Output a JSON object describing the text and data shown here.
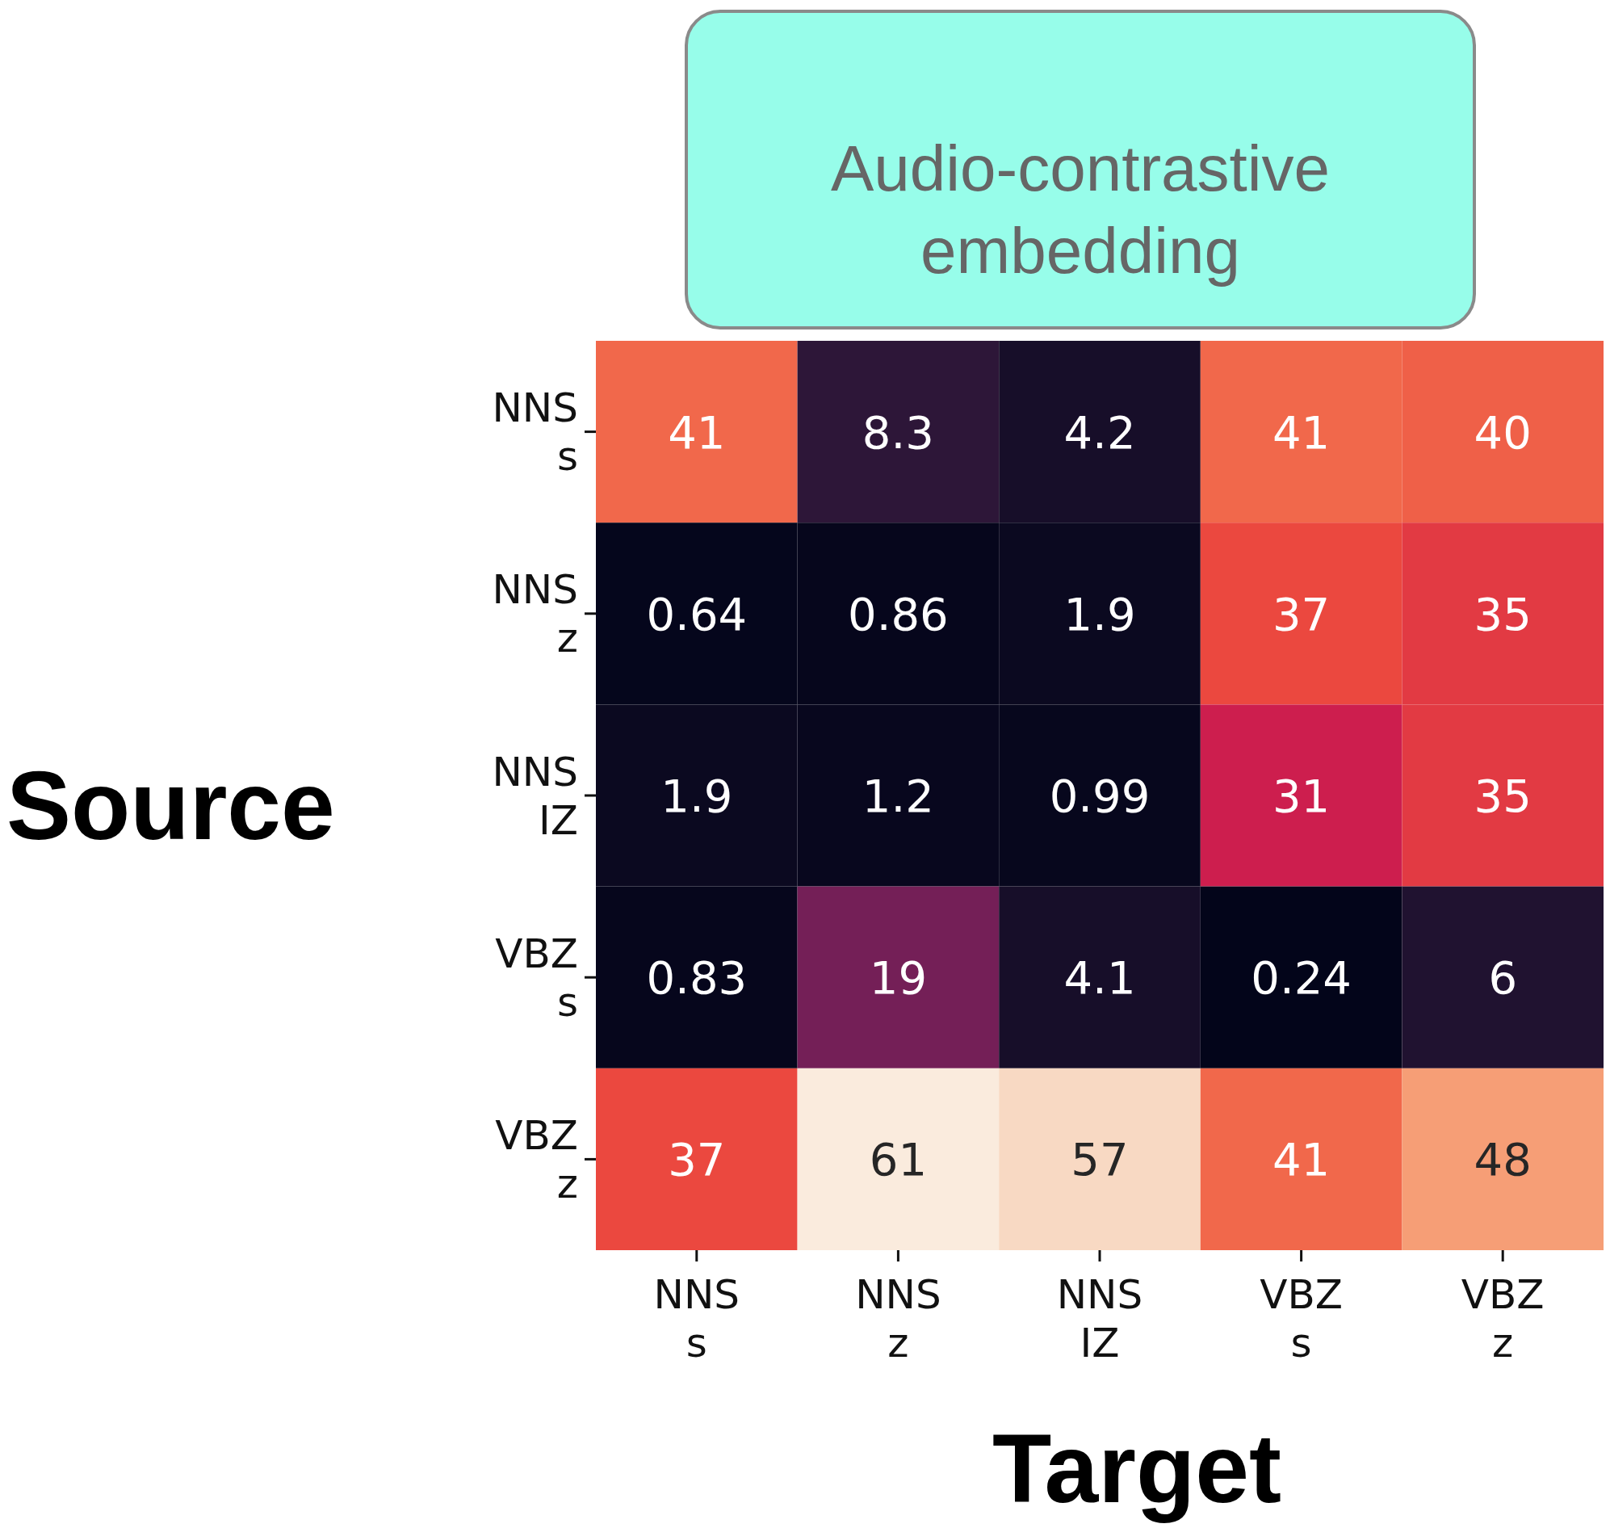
{
  "chart_data": {
    "type": "heatmap",
    "title": "Audio-contrastive embedding",
    "xlabel": "Target",
    "ylabel": "Source",
    "categories": [
      "NNS\ns",
      "NNS\nz",
      "NNS\nIZ",
      "VBZ\ns",
      "VBZ\nz"
    ],
    "y_categories": [
      "NNS\ns",
      "NNS\nz",
      "NNS\nIZ",
      "VBZ\ns",
      "VBZ\nz"
    ],
    "cells": [
      [
        41,
        8.3,
        4.2,
        41,
        40
      ],
      [
        0.64,
        0.86,
        1.9,
        37,
        35
      ],
      [
        1.9,
        1.2,
        0.99,
        31,
        35
      ],
      [
        0.83,
        19,
        4.1,
        0.24,
        6
      ],
      [
        37,
        61,
        57,
        41,
        48
      ]
    ],
    "data_labels": true
  }
}
